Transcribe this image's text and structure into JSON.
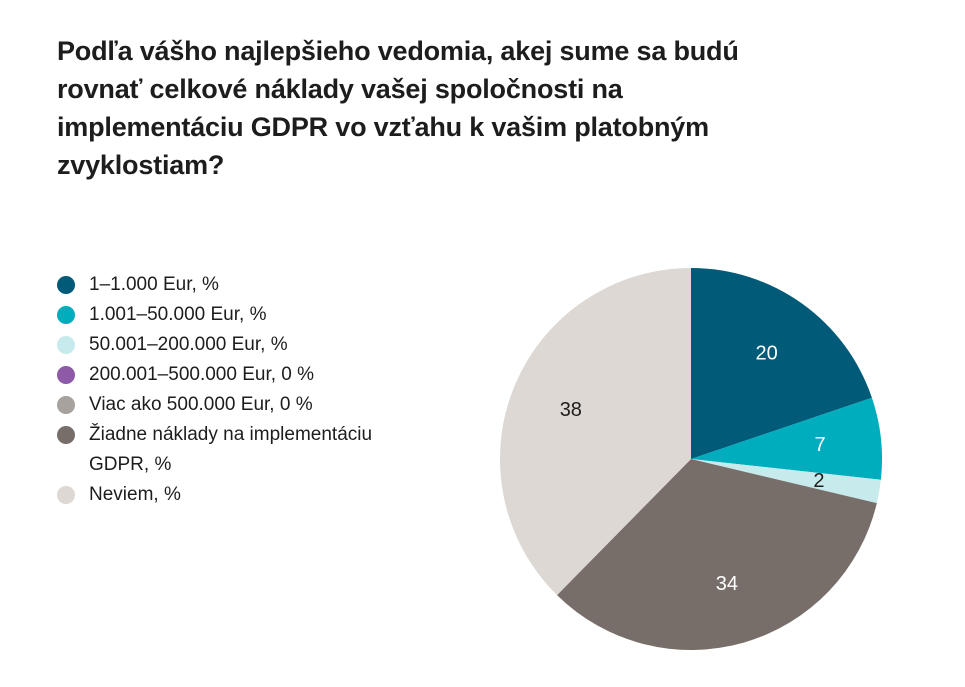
{
  "title": "Podľa vášho najlepšieho vedomia, akej sume sa budú rovnať celkové náklady vašej spoločnosti na implementáciu GDPR vo vzťahu k vašim platobným zvyklostiam?",
  "chart_data": {
    "type": "pie",
    "title": "Podľa vášho najlepšieho vedomia, akej sume sa budú rovnať celkové náklady vašej spoločnosti na implementáciu GDPR vo vzťahu k vašim platobným zvyklostiam?",
    "start_angle_deg": 0,
    "direction": "clockwise",
    "legend_position": "left",
    "slices": [
      {
        "label": "1–1.000 Eur, %",
        "value": 20,
        "color": "#005a78",
        "value_label": "20",
        "label_color": "#ffffff"
      },
      {
        "label": "1.001–50.000 Eur, %",
        "value": 7,
        "color": "#00adbd",
        "value_label": "7",
        "label_color": "#ffffff"
      },
      {
        "label": "50.001–200.000 Eur, %",
        "value": 2,
        "color": "#c7ebec",
        "value_label": "2",
        "label_color": "#1d1d1d"
      },
      {
        "label": "200.001–500.000 Eur, 0 %",
        "value": 0,
        "color": "#8e5aa8",
        "value_label": "",
        "label_color": "#1d1d1d"
      },
      {
        "label": "Viac ako 500.000 Eur, 0 %",
        "value": 0,
        "color": "#a7a29e",
        "value_label": "",
        "label_color": "#1d1d1d"
      },
      {
        "label": "Žiadne náklady na implementáciu GDPR, %",
        "value": 34,
        "color": "#776e6a",
        "value_label": "34",
        "label_color": "#ffffff"
      },
      {
        "label": "Neviem, %",
        "value": 38,
        "color": "#ddd8d3",
        "value_label": "38",
        "label_color": "#1d1d1d"
      }
    ]
  }
}
